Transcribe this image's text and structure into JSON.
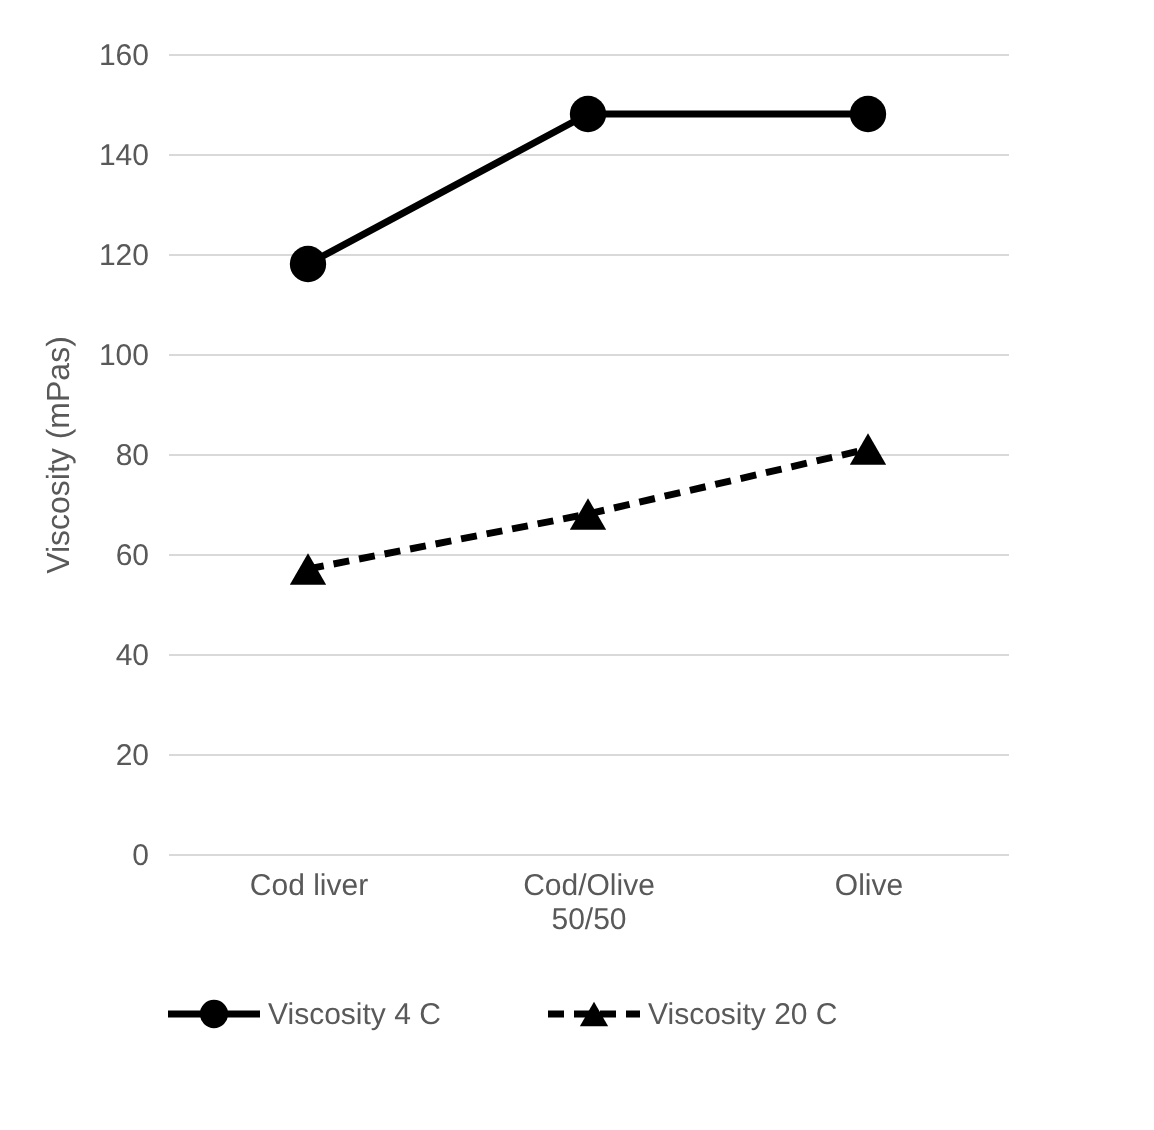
{
  "chart_data": {
    "type": "line",
    "ylabel": "Viscosity (mPas)",
    "categories": [
      "Cod liver",
      "Cod/Olive 50/50",
      "Olive"
    ],
    "series": [
      {
        "name": "Viscosity 4 C",
        "color": "#000000",
        "values": [
          118,
          148,
          148
        ],
        "marker": "circle",
        "line_style": "solid"
      },
      {
        "name": "Viscosity 20 C",
        "color": "#000000",
        "values": [
          57,
          68,
          81
        ],
        "marker": "triangle",
        "line_style": "dashed"
      }
    ],
    "ylim": [
      0,
      160
    ],
    "yticks": [
      0,
      20,
      40,
      60,
      80,
      100,
      120,
      140,
      160
    ],
    "grid": "y",
    "legend": "bottom"
  }
}
